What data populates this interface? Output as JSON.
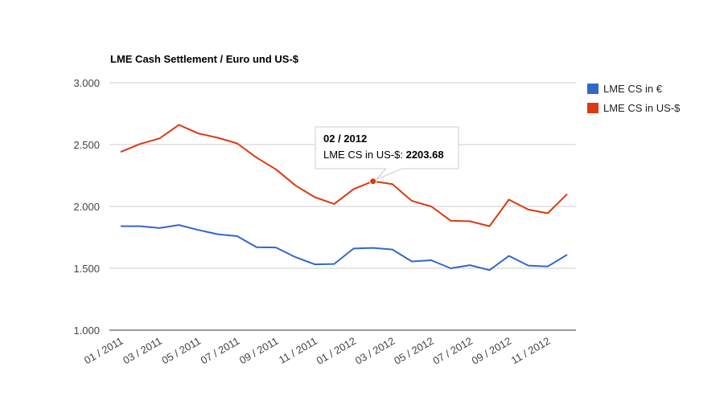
{
  "chart_data": {
    "type": "line",
    "title": "LME Cash Settlement / Euro und US-$",
    "xlabel": "",
    "ylabel": "",
    "ylim": [
      1000,
      3000
    ],
    "yticks": [
      {
        "value": 1000,
        "label": "1.000"
      },
      {
        "value": 1500,
        "label": "1.500"
      },
      {
        "value": 2000,
        "label": "2.000"
      },
      {
        "value": 2500,
        "label": "2.500"
      },
      {
        "value": 3000,
        "label": "3.000"
      }
    ],
    "grid": true,
    "legend_position": "right",
    "x": [
      "01 / 2011",
      "02 / 2011",
      "03 / 2011",
      "04 / 2011",
      "05 / 2011",
      "06 / 2011",
      "07 / 2011",
      "08 / 2011",
      "09 / 2011",
      "10 / 2011",
      "11 / 2011",
      "12 / 2011",
      "01 / 2012",
      "02 / 2012",
      "03 / 2012",
      "04 / 2012",
      "05 / 2012",
      "06 / 2012",
      "07 / 2012",
      "08 / 2012",
      "09 / 2012",
      "10 / 2012",
      "11 / 2012",
      "12 / 2012"
    ],
    "x_tick_labels": [
      "01 / 2011",
      "03 / 2011",
      "05 / 2011",
      "07 / 2011",
      "09 / 2011",
      "11 / 2011",
      "01 / 2012",
      "03 / 2012",
      "05 / 2012",
      "07 / 2012",
      "09 / 2012",
      "11 / 2012"
    ],
    "series": [
      {
        "name": "LME CS in €",
        "color": "#3366cc",
        "values": [
          1840,
          1840,
          1825,
          1850,
          1810,
          1775,
          1760,
          1670,
          1668,
          1590,
          1532,
          1535,
          1660,
          1665,
          1652,
          1555,
          1565,
          1500,
          1525,
          1485,
          1600,
          1522,
          1515,
          1610
        ]
      },
      {
        "name": "LME CS in US-$",
        "color": "#dc3912",
        "values": [
          2440,
          2505,
          2550,
          2660,
          2590,
          2555,
          2510,
          2395,
          2300,
          2170,
          2075,
          2020,
          2140,
          2203.68,
          2180,
          2045,
          2000,
          1885,
          1880,
          1840,
          2055,
          1975,
          1945,
          2100
        ]
      }
    ],
    "tooltip": {
      "title": "02 / 2012",
      "label": "LME CS in US-$: ",
      "value": "2203.68",
      "series_index": 1,
      "point_index": 13
    }
  }
}
